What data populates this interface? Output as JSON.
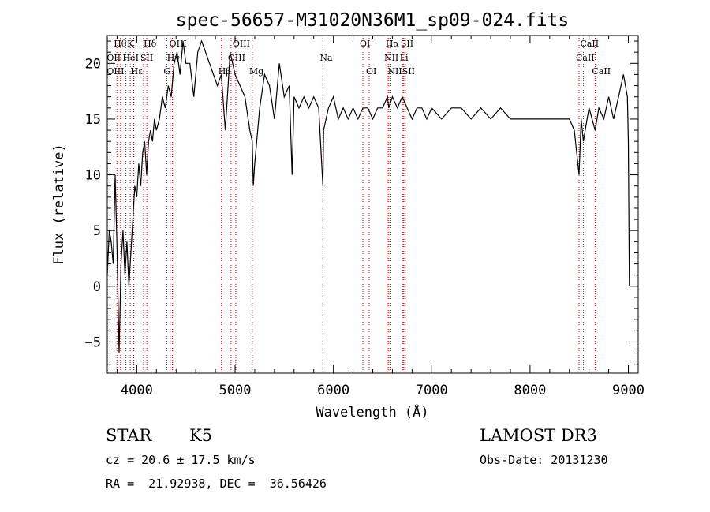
{
  "chart_data": {
    "type": "line",
    "title": "spec-56657-M31020N36M1_sp09-024.fits",
    "xlabel": "Wavelength (Å)",
    "ylabel": "Flux (relative)",
    "xlim": [
      3700,
      9100
    ],
    "ylim": [
      -7.8,
      22.5
    ],
    "x_ticks": [
      4000,
      5000,
      6000,
      7000,
      8000,
      9000
    ],
    "y_ticks": [
      -5,
      0,
      5,
      10,
      15,
      20
    ],
    "grid": false,
    "series": [
      {
        "x": [
          3700,
          3720,
          3740,
          3760,
          3780,
          3800,
          3820,
          3840,
          3860,
          3880,
          3900,
          3920,
          3940,
          3960,
          3980,
          4000,
          4020,
          4040,
          4060,
          4080,
          4100,
          4120,
          4140,
          4160,
          4180,
          4200,
          4230,
          4260,
          4290,
          4320,
          4350,
          4380,
          4410,
          4440,
          4470,
          4500,
          4540,
          4580,
          4620,
          4660,
          4700,
          4740,
          4780,
          4820,
          4860,
          4900,
          4950,
          5000,
          5050,
          5100,
          5150,
          5175,
          5185,
          5200,
          5250,
          5300,
          5350,
          5400,
          5450,
          5500,
          5550,
          5580,
          5600,
          5650,
          5700,
          5750,
          5800,
          5850,
          5893,
          5900,
          5950,
          6000,
          6050,
          6100,
          6150,
          6200,
          6250,
          6300,
          6350,
          6400,
          6450,
          6500,
          6550,
          6563,
          6600,
          6650,
          6700,
          6750,
          6800,
          6850,
          6900,
          6950,
          7000,
          7100,
          7200,
          7300,
          7400,
          7500,
          7600,
          7700,
          7800,
          7900,
          8000,
          8100,
          8200,
          8300,
          8400,
          8450,
          8498,
          8520,
          8542,
          8580,
          8600,
          8662,
          8700,
          8750,
          8800,
          8850,
          8900,
          8950,
          8990,
          9000,
          9010
        ],
        "values": [
          1,
          5,
          4,
          2,
          10,
          3,
          -6,
          2,
          5,
          1,
          4,
          0,
          3,
          6,
          9,
          8,
          11,
          9,
          12,
          13,
          10,
          13,
          14,
          13,
          15,
          14,
          15,
          17,
          16,
          18,
          17,
          20,
          21,
          19,
          22,
          20,
          20,
          17,
          21,
          22,
          21,
          20,
          19,
          18,
          19,
          14,
          21,
          19,
          18,
          17,
          14,
          13,
          9,
          11,
          16,
          19,
          18,
          15,
          20,
          17,
          18,
          10,
          17,
          16,
          17,
          16,
          17,
          16,
          9,
          14,
          16,
          17,
          15,
          16,
          15,
          16,
          15,
          16,
          16,
          15,
          16,
          16,
          17,
          16,
          17,
          16,
          17,
          16,
          15,
          16,
          16,
          15,
          16,
          15,
          16,
          16,
          15,
          16,
          15,
          16,
          15,
          15,
          15,
          15,
          15,
          15,
          15,
          14,
          10,
          15,
          13,
          15,
          16,
          14,
          16,
          15,
          17,
          15,
          17,
          19,
          17,
          13,
          0
        ]
      }
    ],
    "line_labels": [
      {
        "text": "Hθ",
        "x": 3798,
        "row": 1
      },
      {
        "text": "K",
        "x": 3934,
        "row": 1
      },
      {
        "text": "Hδ",
        "x": 4102,
        "row": 1
      },
      {
        "text": "OIII",
        "x": 4363,
        "row": 1
      },
      {
        "text": "OIII",
        "x": 5007,
        "row": 1
      },
      {
        "text": "OI",
        "x": 6300,
        "row": 1
      },
      {
        "text": "Hα",
        "x": 6563,
        "row": 1
      },
      {
        "text": "SII",
        "x": 6716,
        "row": 1
      },
      {
        "text": "CaII",
        "x": 8542,
        "row": 1
      },
      {
        "text": "OII",
        "x": 3727,
        "row": 2
      },
      {
        "text": "HeI",
        "x": 3889,
        "row": 2
      },
      {
        "text": "SII",
        "x": 4069,
        "row": 2
      },
      {
        "text": "Hγ",
        "x": 4340,
        "row": 2
      },
      {
        "text": "OIII",
        "x": 4959,
        "row": 2
      },
      {
        "text": "Na",
        "x": 5893,
        "row": 2
      },
      {
        "text": "NII",
        "x": 6548,
        "row": 2
      },
      {
        "text": "Li",
        "x": 6707,
        "row": 2
      },
      {
        "text": "CaII",
        "x": 8498,
        "row": 2
      },
      {
        "text": "OIII",
        "x": 3727,
        "row": 3
      },
      {
        "text": "Hε",
        "x": 3970,
        "row": 3
      },
      {
        "text": "H",
        "x": 3968,
        "row": 3
      },
      {
        "text": "G",
        "x": 4305,
        "row": 3
      },
      {
        "text": "Hβ",
        "x": 4861,
        "row": 3
      },
      {
        "text": "Mg",
        "x": 5175,
        "row": 3
      },
      {
        "text": "OI",
        "x": 6364,
        "row": 3
      },
      {
        "text": "NII",
        "x": 6584,
        "row": 3
      },
      {
        "text": "SII",
        "x": 6731,
        "row": 3
      },
      {
        "text": "CaII",
        "x": 8662,
        "row": 3
      }
    ],
    "line_markers": [
      3727,
      3798,
      3835,
      3889,
      3934,
      3968,
      3970,
      4069,
      4102,
      4305,
      4340,
      4363,
      4861,
      4959,
      5007,
      5175,
      5893,
      6300,
      6364,
      6548,
      6563,
      6584,
      6707,
      6716,
      6731,
      8498,
      8542,
      8662
    ]
  },
  "info": {
    "object_class": "STAR",
    "subclass": "K5",
    "survey": "LAMOST DR3",
    "cz": "cz = 20.6 ± 17.5 km/s",
    "obs_date": "Obs-Date: 20131230",
    "radec": "RA =  21.92938, DEC =  36.56426"
  },
  "colors": {
    "axis": "#000000",
    "spectrum": "#000000",
    "marker": "#cc0000"
  }
}
